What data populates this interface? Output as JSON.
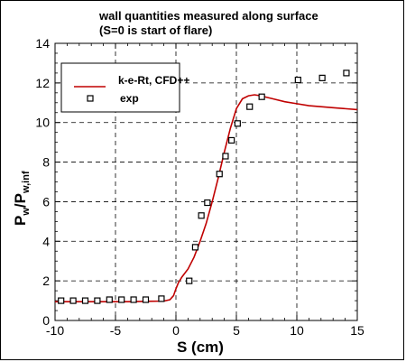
{
  "chart_data": {
    "type": "line",
    "title": "wall quantities measured along surface",
    "subtitle": "(S=0 is start of flare)",
    "xlabel": "S (cm)",
    "ylabel_main": "P",
    "ylabel_sub1": "w",
    "ylabel_mid": "/P",
    "ylabel_sub2": "w,inf",
    "xlim": [
      -10,
      15
    ],
    "ylim": [
      0,
      14
    ],
    "xticks": [
      -10,
      -5,
      0,
      5,
      10,
      15
    ],
    "yticks": [
      0,
      2,
      4,
      6,
      8,
      10,
      12,
      14
    ],
    "grid": true,
    "legend_position": "top-left",
    "series": [
      {
        "name": "k-e-Rt, CFD++",
        "color": "#c00000",
        "style": "line",
        "x": [
          -10,
          -8,
          -6,
          -4,
          -2,
          -1,
          -0.5,
          -0.2,
          0,
          0.2,
          0.5,
          1,
          1.5,
          2,
          2.5,
          3,
          3.5,
          4,
          4.5,
          5,
          5.5,
          6,
          6.5,
          7,
          8,
          9,
          10,
          11,
          12,
          13,
          14,
          15
        ],
        "y": [
          0.95,
          0.95,
          0.95,
          0.95,
          0.97,
          0.98,
          1.05,
          1.25,
          1.6,
          1.9,
          2.2,
          2.6,
          3.2,
          4.0,
          4.9,
          6.0,
          7.2,
          8.5,
          9.7,
          10.7,
          11.2,
          11.35,
          11.4,
          11.35,
          11.2,
          11.05,
          10.95,
          10.85,
          10.8,
          10.75,
          10.7,
          10.65
        ]
      },
      {
        "name": "exp",
        "color": "#000000",
        "style": "markers",
        "marker": "square",
        "x": [
          -9.5,
          -8.5,
          -7.5,
          -6.5,
          -5.5,
          -4.5,
          -3.5,
          -2.5,
          -1.2,
          1.1,
          1.6,
          2.1,
          2.6,
          3.6,
          4.1,
          4.6,
          5.1,
          6.1,
          7.1,
          10.1,
          12.1,
          14.1
        ],
        "y": [
          1.0,
          1.0,
          1.0,
          1.0,
          1.05,
          1.05,
          1.05,
          1.05,
          1.1,
          2.0,
          3.7,
          5.3,
          5.95,
          7.4,
          8.3,
          9.1,
          9.95,
          10.8,
          11.3,
          12.15,
          12.25,
          12.5
        ]
      }
    ]
  }
}
